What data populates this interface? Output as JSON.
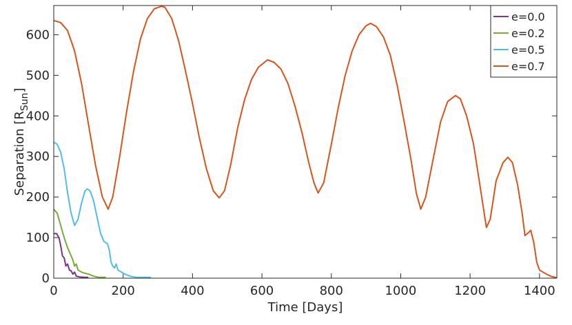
{
  "chart_data": {
    "type": "line",
    "xlabel": "Time [Days]",
    "ylabel": {
      "main": "Separation [R",
      "sub": "Sun",
      "close": "]"
    },
    "xlim": [
      0,
      1450
    ],
    "ylim": [
      0,
      672
    ],
    "xticks": [
      0,
      200,
      400,
      600,
      800,
      1000,
      1200,
      1400
    ],
    "yticks": [
      0,
      100,
      200,
      300,
      400,
      500,
      600
    ],
    "legend": "upper-right",
    "series": [
      {
        "name": "e=0.0",
        "color": "#7e2f8e",
        "x": [
          0,
          8,
          15,
          20,
          25,
          30,
          35,
          40,
          45,
          50,
          55,
          60,
          65,
          75,
          90,
          100
        ],
        "values": [
          110,
          110,
          100,
          80,
          55,
          50,
          30,
          35,
          20,
          18,
          10,
          15,
          5,
          3,
          2,
          2
        ]
      },
      {
        "name": "e=0.2",
        "color": "#77ac30",
        "x": [
          0,
          10,
          20,
          30,
          40,
          50,
          55,
          60,
          65,
          70,
          80,
          90,
          100,
          115,
          130,
          150
        ],
        "values": [
          170,
          160,
          130,
          100,
          75,
          55,
          45,
          30,
          35,
          20,
          15,
          12,
          10,
          5,
          2,
          2
        ]
      },
      {
        "name": "e=0.5",
        "color": "#4dbeee",
        "x": [
          0,
          10,
          20,
          30,
          40,
          50,
          60,
          70,
          80,
          90,
          97,
          105,
          115,
          125,
          135,
          145,
          155,
          160,
          165,
          170,
          175,
          180,
          185,
          195,
          205,
          220,
          240,
          260,
          280
        ],
        "values": [
          335,
          330,
          310,
          270,
          210,
          160,
          130,
          145,
          185,
          215,
          220,
          215,
          190,
          150,
          110,
          90,
          85,
          70,
          40,
          30,
          25,
          35,
          20,
          15,
          10,
          5,
          2,
          2,
          2
        ]
      },
      {
        "name": "e=0.7",
        "color": "#d95319",
        "x": [
          0,
          20,
          40,
          60,
          80,
          100,
          120,
          140,
          157,
          170,
          190,
          210,
          230,
          250,
          270,
          290,
          310,
          320,
          340,
          360,
          380,
          400,
          420,
          440,
          460,
          477,
          492,
          510,
          530,
          550,
          570,
          590,
          616,
          635,
          655,
          675,
          695,
          715,
          735,
          750,
          762,
          778,
          800,
          820,
          840,
          860,
          880,
          900,
          913,
          930,
          950,
          970,
          990,
          1010,
          1030,
          1045,
          1058,
          1072,
          1095,
          1115,
          1135,
          1158,
          1172,
          1190,
          1210,
          1230,
          1247,
          1258,
          1275,
          1295,
          1309,
          1322,
          1337,
          1350,
          1358,
          1368,
          1375,
          1383,
          1392,
          1400,
          1410,
          1420,
          1435,
          1450
        ],
        "values": [
          635,
          630,
          610,
          560,
          480,
          380,
          280,
          200,
          170,
          200,
          300,
          410,
          510,
          590,
          640,
          664,
          670,
          668,
          640,
          585,
          510,
          430,
          345,
          270,
          215,
          198,
          215,
          280,
          370,
          440,
          490,
          520,
          538,
          532,
          515,
          480,
          425,
          360,
          285,
          235,
          210,
          235,
          330,
          420,
          500,
          560,
          600,
          622,
          628,
          620,
          595,
          550,
          475,
          385,
          290,
          210,
          170,
          200,
          300,
          385,
          435,
          450,
          442,
          400,
          330,
          220,
          125,
          145,
          240,
          285,
          298,
          285,
          230,
          160,
          105,
          112,
          118,
          90,
          40,
          20,
          15,
          10,
          4,
          1
        ]
      }
    ]
  }
}
